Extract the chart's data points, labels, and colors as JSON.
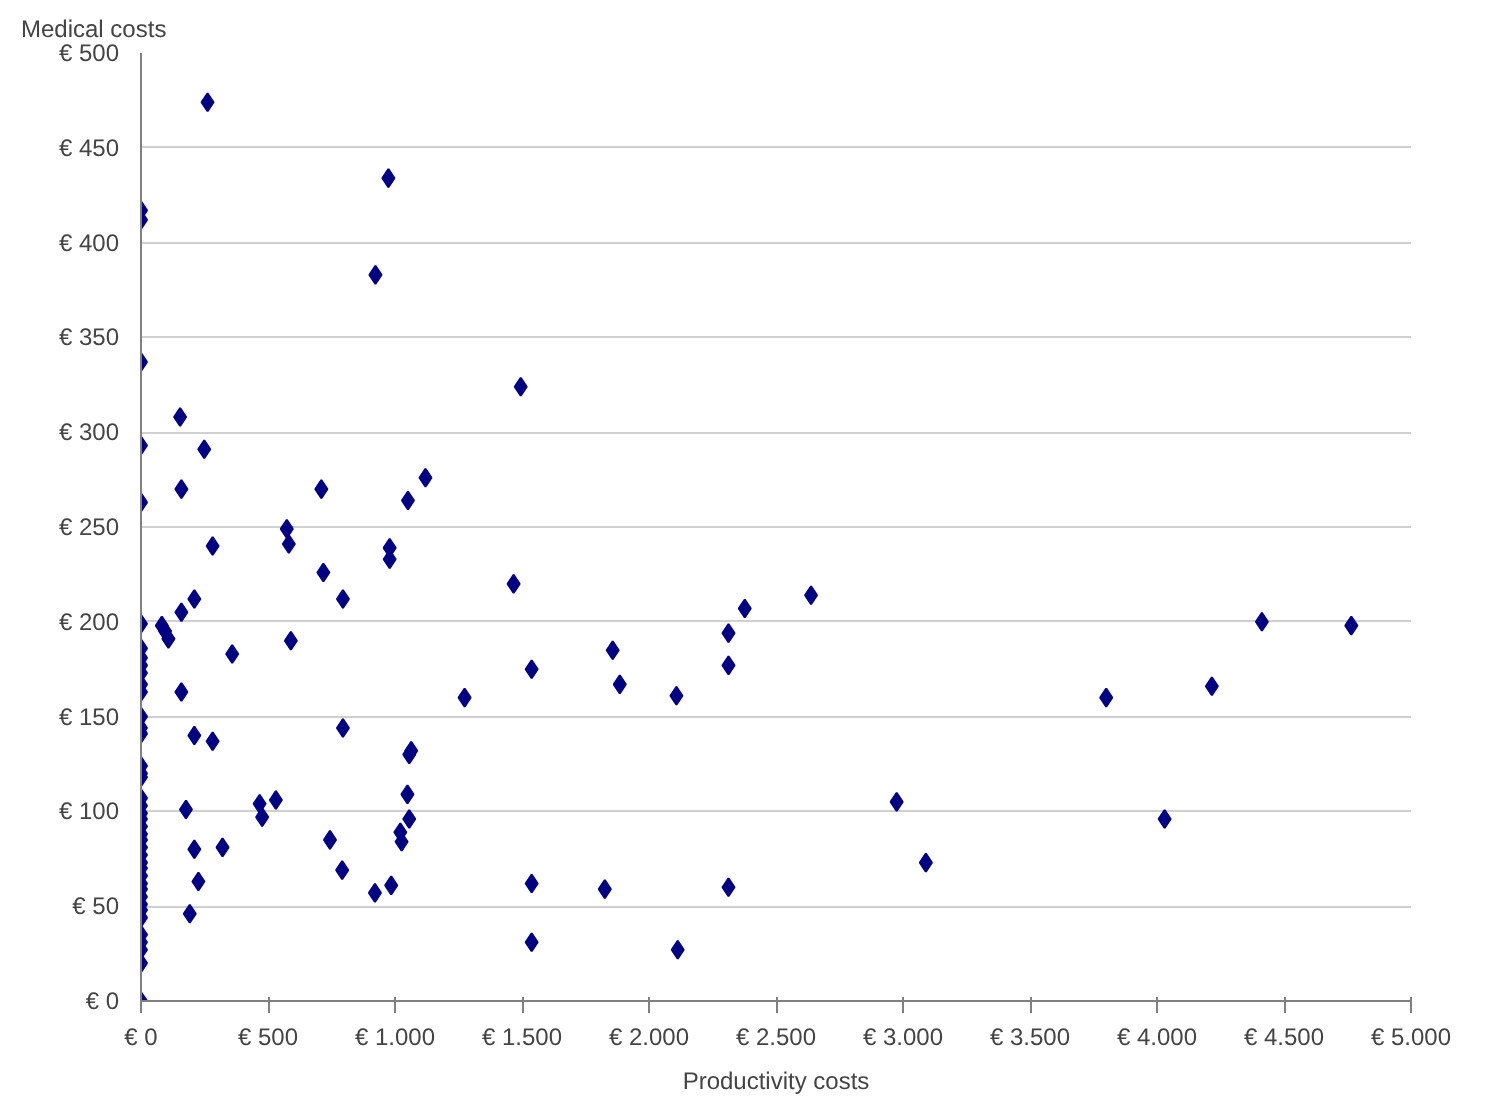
{
  "chart_data": {
    "type": "scatter",
    "xlabel": "Productivity costs",
    "ylabel": "Medical costs",
    "xlim": [
      0,
      5000
    ],
    "ylim": [
      0,
      500
    ],
    "xticks": [
      {
        "value": 0,
        "label": "€ 0"
      },
      {
        "value": 500,
        "label": "€ 500"
      },
      {
        "value": 1000,
        "label": "€ 1.000"
      },
      {
        "value": 1500,
        "label": "€ 1.500"
      },
      {
        "value": 2000,
        "label": "€ 2.000"
      },
      {
        "value": 2500,
        "label": "€ 2.500"
      },
      {
        "value": 3000,
        "label": "€ 3.000"
      },
      {
        "value": 3500,
        "label": "€ 3.500"
      },
      {
        "value": 4000,
        "label": "€ 4.000"
      },
      {
        "value": 4500,
        "label": "€ 4.500"
      },
      {
        "value": 5000,
        "label": "€ 5.000"
      }
    ],
    "yticks": [
      {
        "value": 0,
        "label": "€ 0"
      },
      {
        "value": 50,
        "label": "€ 50"
      },
      {
        "value": 100,
        "label": "€ 100"
      },
      {
        "value": 150,
        "label": "€ 150"
      },
      {
        "value": 200,
        "label": "€ 200"
      },
      {
        "value": 250,
        "label": "€ 250"
      },
      {
        "value": 300,
        "label": "€ 300"
      },
      {
        "value": 350,
        "label": "€ 350"
      },
      {
        "value": 400,
        "label": "€ 400"
      },
      {
        "value": 450,
        "label": "€ 450"
      },
      {
        "value": 500,
        "label": "€ 500"
      }
    ],
    "grid": "y",
    "marker": "diamond",
    "series": [
      {
        "color": "#000080",
        "x": [
          0,
          0,
          0,
          0,
          0,
          0,
          0,
          0,
          0,
          0,
          0,
          0,
          0,
          0,
          0,
          0,
          0,
          0,
          0,
          0,
          0,
          0,
          0,
          0,
          0,
          0,
          0,
          0,
          0,
          0,
          0,
          0,
          0,
          0,
          0,
          0,
          0,
          0,
          0,
          0,
          0,
          262,
          974,
          923,
          1495,
          154,
          249,
          159,
          710,
          1120,
          1051,
          574,
          582,
          282,
          979,
          979,
          718,
          159,
          210,
          795,
          82,
          108,
          95,
          590,
          359,
          159,
          1274,
          1538,
          1467,
          795,
          210,
          282,
          1056,
          1064,
          1049,
          177,
          467,
          531,
          477,
          1056,
          1021,
          1026,
          744,
          321,
          210,
          792,
          226,
          985,
          921,
          1538,
          1538,
          192,
          1857,
          1885,
          2108,
          2313,
          2313,
          2377,
          2638,
          2975,
          3090,
          1826,
          2313,
          2113,
          3800,
          4030,
          4216,
          4413,
          4765
        ],
        "values": [
          417,
          412,
          337,
          293,
          263,
          199,
          186,
          181,
          177,
          173,
          167,
          163,
          150,
          144,
          141,
          124,
          120,
          118,
          107,
          103,
          99,
          96,
          92,
          88,
          85,
          81,
          77,
          73,
          70,
          66,
          62,
          59,
          55,
          51,
          48,
          44,
          35,
          31,
          27,
          20,
          0,
          474,
          434,
          383,
          324,
          308,
          291,
          270,
          270,
          276,
          264,
          249,
          241,
          240,
          239,
          233,
          226,
          205,
          212,
          212,
          198,
          191,
          195,
          190,
          183,
          163,
          160,
          175,
          220,
          144,
          140,
          137,
          130,
          132,
          109,
          101,
          104,
          106,
          97,
          96,
          89,
          84,
          85,
          81,
          80,
          69,
          63,
          61,
          57,
          62,
          31,
          46,
          185,
          167,
          161,
          194,
          177,
          207,
          214,
          105,
          73,
          59,
          60,
          27,
          160,
          96,
          166,
          200,
          198
        ]
      }
    ]
  }
}
